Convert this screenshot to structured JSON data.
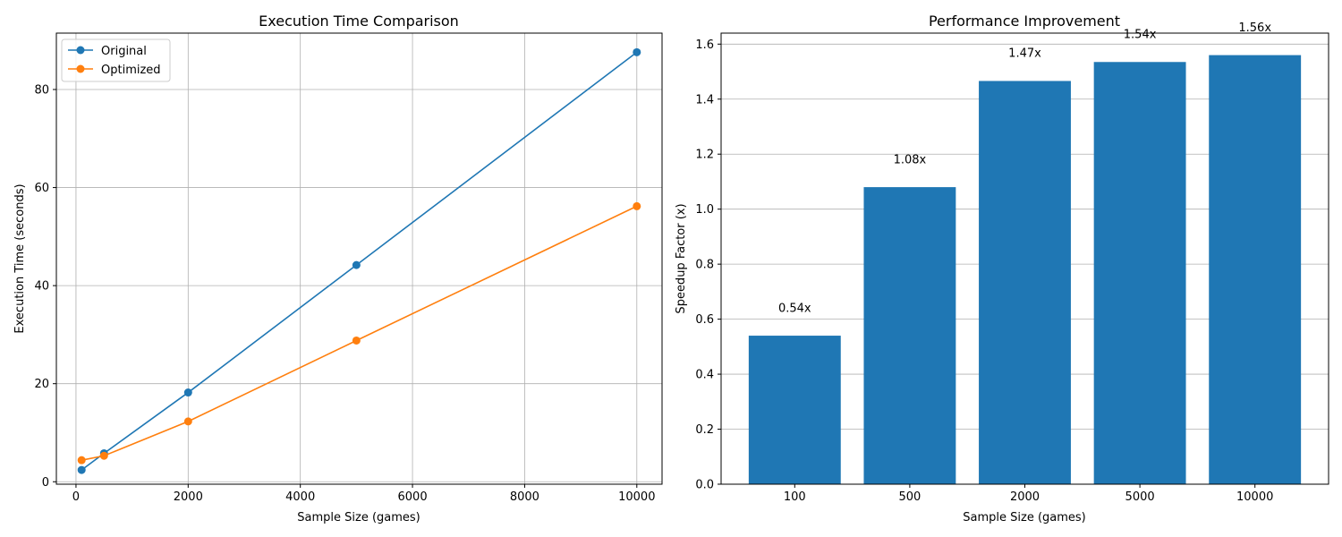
{
  "chart_data": [
    {
      "type": "line",
      "title": "Execution Time Comparison",
      "xlabel": "Sample Size (games)",
      "ylabel": "Execution Time (seconds)",
      "xlim": [
        -350,
        10450
      ],
      "ylim": [
        -0.5,
        91.5
      ],
      "xticks": [
        0,
        2000,
        4000,
        6000,
        8000,
        10000
      ],
      "yticks": [
        0,
        20,
        40,
        60,
        80
      ],
      "grid": true,
      "legend": "top-left",
      "x": [
        100,
        500,
        2000,
        5000,
        10000
      ],
      "series": [
        {
          "name": "Original",
          "color": "#1f77b4",
          "values": [
            2.4,
            5.8,
            18.2,
            44.2,
            87.6
          ]
        },
        {
          "name": "Optimized",
          "color": "#ff7f0e",
          "values": [
            4.4,
            5.3,
            12.3,
            28.8,
            56.2
          ]
        }
      ]
    },
    {
      "type": "bar",
      "title": "Performance Improvement",
      "xlabel": "Sample Size (games)",
      "ylabel": "Speedup Factor (x)",
      "categories": [
        "100",
        "500",
        "2000",
        "5000",
        "10000"
      ],
      "values": [
        0.54,
        1.08,
        1.466,
        1.535,
        1.56
      ],
      "data_labels": [
        "0.54x",
        "1.08x",
        "1.47x",
        "1.54x",
        "1.56x"
      ],
      "ylim": [
        0,
        1.64
      ],
      "yticks": [
        0.0,
        0.2,
        0.4,
        0.6,
        0.8,
        1.0,
        1.2,
        1.4,
        1.6
      ],
      "grid": "y",
      "color": "#1f77b4"
    }
  ]
}
